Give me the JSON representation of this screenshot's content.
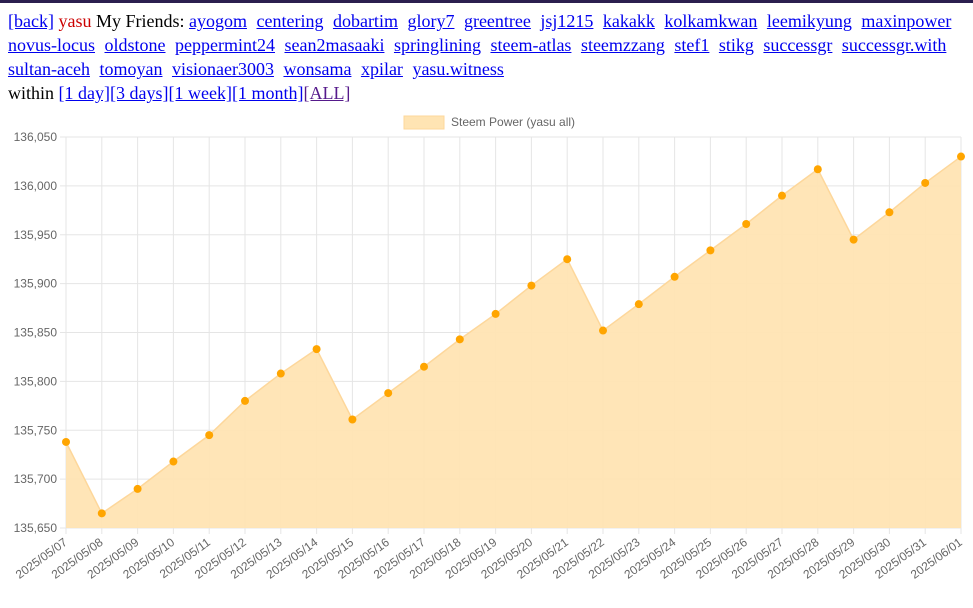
{
  "nav": {
    "back_label": "[back]",
    "user": "yasu",
    "friends_label": "My Friends:",
    "friends": [
      "ayogom",
      "centering",
      "dobartim",
      "glory7",
      "greentree",
      "jsj1215",
      "kakakk",
      "kolkamkwan",
      "leemikyung",
      "maxinpower",
      "novus-locus",
      "oldstone",
      "peppermint24",
      "sean2masaaki",
      "springlining",
      "steem-atlas",
      "steemzzang",
      "stef1",
      "stikg",
      "successgr",
      "successgr.with",
      "sultan-aceh",
      "tomoyan",
      "visionaer3003",
      "wonsama",
      "xpilar",
      "yasu.witness"
    ],
    "within_label": "within",
    "ranges": [
      "[1 day]",
      "[3 days]",
      "[1 week]",
      "[1 month]"
    ],
    "active_range": "[ALL]"
  },
  "colors": {
    "fill": "#ffe4b3",
    "line": "#fdd79b",
    "point": "#ffa500",
    "grid": "#e5e5e5",
    "link": "#0000ee",
    "visited": "#551a8b",
    "user": "#cc0000"
  },
  "chart_data": {
    "type": "area",
    "legend": "top",
    "grid": true,
    "x": [
      "2025/05/07",
      "2025/05/08",
      "2025/05/09",
      "2025/05/10",
      "2025/05/11",
      "2025/05/12",
      "2025/05/13",
      "2025/05/14",
      "2025/05/15",
      "2025/05/16",
      "2025/05/17",
      "2025/05/18",
      "2025/05/19",
      "2025/05/20",
      "2025/05/21",
      "2025/05/22",
      "2025/05/23",
      "2025/05/24",
      "2025/05/25",
      "2025/05/26",
      "2025/05/27",
      "2025/05/28",
      "2025/05/29",
      "2025/05/30",
      "2025/05/31",
      "2025/06/01"
    ],
    "series": [
      {
        "name": "Steem Power (yasu all)",
        "values": [
          135738,
          135665,
          135690,
          135718,
          135745,
          135780,
          135808,
          135833,
          135761,
          135788,
          135815,
          135843,
          135869,
          135898,
          135925,
          135852,
          135879,
          135907,
          135934,
          135961,
          135990,
          136017,
          135945,
          135973,
          136003,
          136030
        ]
      }
    ],
    "ylim": [
      135650,
      136050
    ],
    "yticks": [
      "135,650",
      "135,700",
      "135,750",
      "135,800",
      "135,850",
      "135,900",
      "135,950",
      "136,000",
      "136,050"
    ]
  }
}
